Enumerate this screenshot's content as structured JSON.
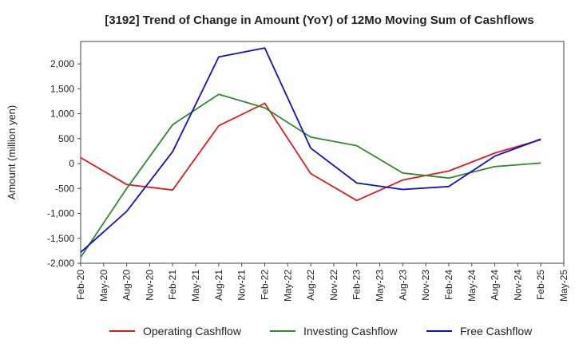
{
  "chart_data": {
    "type": "line",
    "title": "[3192]  Trend of Change in Amount (YoY) of 12Mo Moving Sum of Cashflows",
    "xlabel": "",
    "ylabel": "Amount (million yen)",
    "ylim": [
      -2000,
      2450
    ],
    "yticks": [
      -2000,
      -1500,
      -1000,
      -500,
      0,
      500,
      1000,
      1500,
      2000
    ],
    "ytick_labels": [
      "-2,000",
      "-1,500",
      "-1,000",
      "-500",
      "0",
      "500",
      "1,000",
      "1,500",
      "2,000"
    ],
    "categories": [
      "Feb-20",
      "May-20",
      "Aug-20",
      "Nov-20",
      "Feb-21",
      "May-21",
      "Aug-21",
      "Nov-21",
      "Feb-22",
      "May-22",
      "Aug-22",
      "Nov-22",
      "Feb-23",
      "May-23",
      "Aug-23",
      "Nov-23",
      "Feb-24",
      "May-24",
      "Aug-24",
      "Nov-24",
      "Feb-25",
      "May-25"
    ],
    "grid": true,
    "legend_position": "bottom",
    "series": [
      {
        "name": "Operating Cashflow",
        "color": "#e31a1c",
        "values": [
          120,
          null,
          -420,
          null,
          -530,
          null,
          760,
          null,
          1210,
          null,
          -200,
          null,
          -740,
          null,
          -330,
          null,
          -150,
          null,
          210,
          null,
          480,
          null
        ]
      },
      {
        "name": "Investing Cashflow",
        "color": "#2e8b2e",
        "values": [
          -1880,
          null,
          -500,
          null,
          780,
          null,
          1390,
          null,
          1120,
          null,
          530,
          null,
          360,
          null,
          -190,
          null,
          -290,
          null,
          -60,
          null,
          10,
          null
        ]
      },
      {
        "name": "Free Cashflow",
        "color": "#1010cc",
        "values": [
          -1780,
          null,
          -960,
          null,
          240,
          null,
          2140,
          null,
          2320,
          null,
          310,
          null,
          -390,
          null,
          -520,
          null,
          -460,
          null,
          150,
          null,
          490,
          null
        ]
      }
    ]
  }
}
